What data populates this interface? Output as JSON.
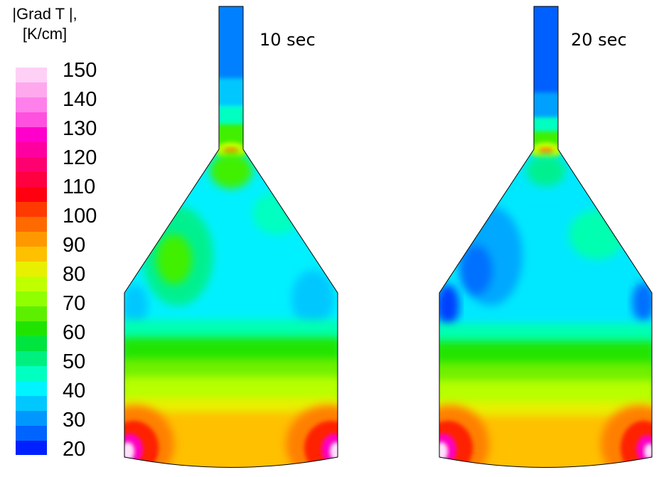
{
  "legend": {
    "title_line1": "|Grad T |,",
    "title_line2": "[K/cm]",
    "ticks": [
      "150",
      "140",
      "130",
      "120",
      "110",
      "100",
      "90",
      "80",
      "70",
      "60",
      "50",
      "40",
      "30",
      "20"
    ],
    "colors": [
      "#ff00ff",
      "#ff33ff",
      "#ff55f0",
      "#ff77ee",
      "#ff99f2",
      "#ffb8f6",
      "#ffd9fb",
      "#ff00cc",
      "#ff0099",
      "#ff0066",
      "#ff003f",
      "#ff0010",
      "#ff3000",
      "#ff5800",
      "#ff7800",
      "#ff9800",
      "#ffb400",
      "#ffd200",
      "#e6f000",
      "#c8ff00",
      "#a0ff00",
      "#78ff00",
      "#50f000",
      "#28e010",
      "#00e000",
      "#00e840",
      "#00f070",
      "#00f5a0",
      "#00ffd0",
      "#00ffff",
      "#00e0ff",
      "#00c0ff",
      "#00a0ff",
      "#0080ff",
      "#0060ff",
      "#0030ff",
      "#0000ff"
    ]
  },
  "panels": [
    {
      "label": "10 sec"
    },
    {
      "label": "20 sec"
    }
  ]
}
